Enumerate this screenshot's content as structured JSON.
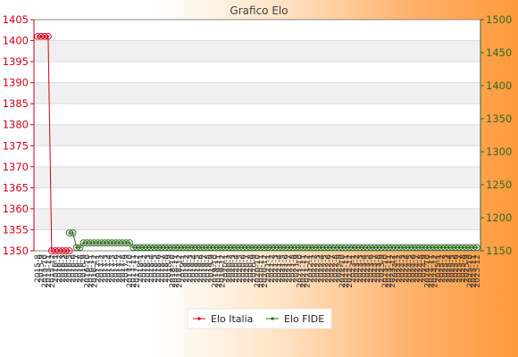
{
  "chart_data": {
    "type": "line",
    "title": "Grafico Elo",
    "grid": "horizontal",
    "legend_placement": "bottom-center",
    "y_left": {
      "range": [
        1350,
        1405
      ],
      "ticks": [
        1350,
        1355,
        1360,
        1365,
        1370,
        1375,
        1380,
        1385,
        1390,
        1395,
        1400,
        1405
      ],
      "color": "#d0021b"
    },
    "y_right": {
      "range": [
        1150,
        1500
      ],
      "ticks": [
        1150,
        1200,
        1250,
        1300,
        1350,
        1400,
        1450,
        1500
      ],
      "color": "#2e6b1f"
    },
    "x_tick_labels": [
      "2015-8",
      "2015-9",
      "2015-10",
      "2015-11",
      "2015-12",
      "2016-1",
      "2016-2",
      "2016-3",
      "2016-4",
      "2016-5",
      "2016-6",
      "2016-7",
      "2016-8",
      "2016-9",
      "2016-10",
      "2016-11",
      "2016-12",
      "2017-1",
      "2017-2",
      "2017-3",
      "2017-4",
      "2017-5",
      "2017-6",
      "2017-7",
      "2017-8",
      "2017-9",
      "2017-10",
      "2017-11",
      "2017-12",
      "2018-1",
      "2018-2",
      "2018-3",
      "2018-4",
      "2018-5",
      "2018-6",
      "2018-7",
      "2018-8",
      "2018-9",
      "2018-10",
      "2018-11",
      "2018-12",
      "2019-1",
      "2019-2",
      "2019-3",
      "2019-4",
      "2019-5",
      "2019-6",
      "2019-7",
      "2019-8",
      "2019-9",
      "2019-10",
      "2019-11",
      "2019-12",
      "2020-1",
      "2020-2",
      "2020-3",
      "2020-4",
      "2020-5",
      "2020-6",
      "2020-7",
      "2020-8",
      "2020-9",
      "2020-10",
      "2020-11",
      "2020-12",
      "2021-1",
      "2021-2",
      "2021-3",
      "2021-4",
      "2021-5",
      "2021-6",
      "2021-7",
      "2021-8",
      "2021-9",
      "2021-10",
      "2021-11",
      "2021-12",
      "2022-1",
      "2022-2",
      "2022-3",
      "2022-4",
      "2022-5",
      "2022-6",
      "2022-7",
      "2022-8",
      "2022-9",
      "2022-10",
      "2022-11",
      "2022-12",
      "2023-1",
      "2023-2",
      "2023-3",
      "2023-4",
      "2023-5",
      "2023-6",
      "2023-7",
      "2023-8",
      "2023-9",
      "2023-10",
      "2023-11",
      "2023-12",
      "2024-1",
      "2024-2",
      "2024-3",
      "2024-4",
      "2024-5",
      "2024-6",
      "2024-7",
      "2024-8",
      "2024-9",
      "2024-10",
      "2024-11",
      "2024-12",
      "2025-1",
      "2025-2",
      "2025-3",
      "2025-4",
      "2025-5",
      "2025-6",
      "2025-7",
      "2025-8",
      "2025-9",
      "2025-10",
      "2025-11",
      "2025-12"
    ],
    "series": [
      {
        "name": "Elo Italia",
        "axis": "left",
        "color": "#d0021b",
        "x": [
          "2015-8",
          "2015-9",
          "2015-10",
          "2015-11",
          "2015-12",
          "2016-1",
          "2016-2",
          "2016-3",
          "2016-4",
          "2016-5"
        ],
        "values": [
          1401,
          1401,
          1401,
          1401,
          1350,
          1350,
          1350,
          1350,
          1350,
          1350
        ]
      },
      {
        "name": "Elo FIDE",
        "axis": "right",
        "color": "#2e6b1f",
        "x": [
          "2016-5",
          "2016-6",
          "2016-7",
          "2016-8",
          "2016-9",
          "2016-10",
          "2016-11",
          "2016-12",
          "2017-1",
          "2017-2",
          "2017-3",
          "2017-4",
          "2017-5",
          "2017-6",
          "2017-7",
          "2017-8",
          "2017-9",
          "2017-10",
          "2017-11",
          "2017-12",
          "2018-1",
          "2018-2",
          "2018-3",
          "2018-4",
          "2018-5",
          "2018-6",
          "2018-7",
          "2018-8",
          "2018-9",
          "2018-10",
          "2018-11",
          "2018-12",
          "2019-1",
          "2019-2",
          "2019-3",
          "2019-4",
          "2019-5",
          "2019-6",
          "2019-7",
          "2019-8",
          "2019-9",
          "2019-10",
          "2019-11",
          "2019-12",
          "2020-1",
          "2020-2",
          "2020-3",
          "2020-4",
          "2020-5",
          "2020-6",
          "2020-7",
          "2020-8",
          "2020-9",
          "2020-10",
          "2020-11",
          "2020-12",
          "2021-1",
          "2021-2",
          "2021-3",
          "2021-4",
          "2021-5",
          "2021-6",
          "2021-7",
          "2021-8",
          "2021-9",
          "2021-10",
          "2021-11",
          "2021-12",
          "2022-1",
          "2022-2",
          "2022-3",
          "2022-4",
          "2022-5",
          "2022-6",
          "2022-7",
          "2022-8",
          "2022-9",
          "2022-10",
          "2022-11",
          "2022-12",
          "2023-1",
          "2023-2",
          "2023-3",
          "2023-4",
          "2023-5",
          "2023-6",
          "2023-7",
          "2023-8",
          "2023-9",
          "2023-10",
          "2023-11",
          "2023-12",
          "2024-1",
          "2024-2",
          "2024-3",
          "2024-4",
          "2024-5",
          "2024-6",
          "2024-7",
          "2024-8",
          "2024-9",
          "2024-10",
          "2024-11",
          "2024-12",
          "2025-1",
          "2025-2",
          "2025-3",
          "2025-4",
          "2025-5",
          "2025-6",
          "2025-7",
          "2025-8",
          "2025-9",
          "2025-10",
          "2025-11",
          "2025-12"
        ],
        "values": [
          1177,
          1177,
          1155,
          1155,
          1162,
          1162,
          1162,
          1162,
          1162,
          1162,
          1162,
          1162,
          1162,
          1162,
          1162,
          1162,
          1162,
          1162,
          1155,
          1155,
          1155,
          1155,
          1155,
          1155,
          1155,
          1155,
          1155,
          1155,
          1155,
          1155,
          1155,
          1155,
          1155,
          1155,
          1155,
          1155,
          1155,
          1155,
          1155,
          1155,
          1155,
          1155,
          1155,
          1155,
          1155,
          1155,
          1155,
          1155,
          1155,
          1155,
          1155,
          1155,
          1155,
          1155,
          1155,
          1155,
          1155,
          1155,
          1155,
          1155,
          1155,
          1155,
          1155,
          1155,
          1155,
          1155,
          1155,
          1155,
          1155,
          1155,
          1155,
          1155,
          1155,
          1155,
          1155,
          1155,
          1155,
          1155,
          1155,
          1155,
          1155,
          1155,
          1155,
          1155,
          1155,
          1155,
          1155,
          1155,
          1155,
          1155,
          1155,
          1155,
          1155,
          1155,
          1155,
          1155,
          1155,
          1155,
          1155,
          1155,
          1155,
          1155,
          1155,
          1155,
          1155,
          1155,
          1155,
          1155,
          1155,
          1155,
          1155,
          1155,
          1155,
          1155,
          1155,
          1155
        ]
      }
    ]
  }
}
